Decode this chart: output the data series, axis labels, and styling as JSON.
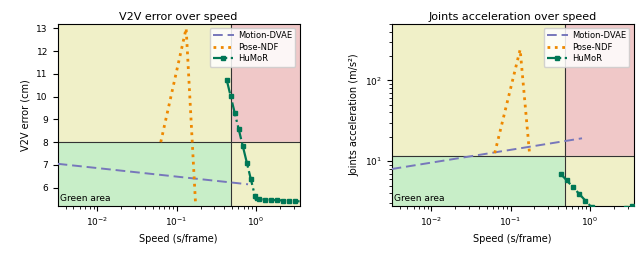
{
  "plot1": {
    "title": "V2V error over speed",
    "xlabel": "Speed (s/frame)",
    "ylabel": "V2V error (cm)",
    "ylim": [
      5.2,
      13.2
    ],
    "xlim_log_min": -2.5,
    "xlim_log_max": 0.55,
    "hline_y": 8.0,
    "vline_x_log": -0.32,
    "green_area_label": "Green area",
    "bg_yellow": "#f0f0c8",
    "bg_green": "#c8eec8",
    "bg_red": "#f0c8c8",
    "motion_dvae_color": "#7777bb",
    "pose_ndf_color": "#ee8800",
    "humor_color": "#007755"
  },
  "plot2": {
    "title": "Joints acceleration over speed",
    "xlabel": "Speed (s/frame)",
    "ylabel": "Joints acceleration (m/s²)",
    "ylim_min": 2.8,
    "ylim_max": 500,
    "xlim_log_min": -2.5,
    "xlim_log_max": 0.55,
    "hline_y": 11.5,
    "vline_x_log": -0.32,
    "green_area_label": "Green area",
    "bg_yellow": "#f0f0c8",
    "bg_green": "#c8eec8",
    "bg_red": "#f0c8c8",
    "motion_dvae_color": "#7777bb",
    "pose_ndf_color": "#ee8800",
    "humor_color": "#007755"
  }
}
